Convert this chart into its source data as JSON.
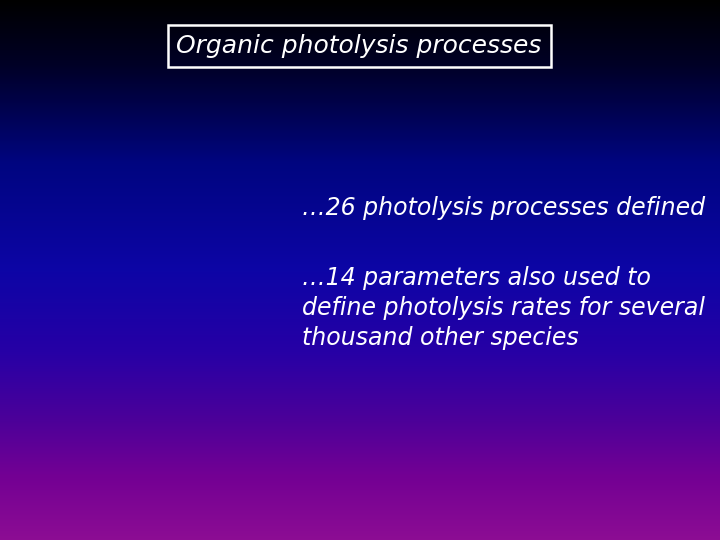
{
  "title": "Organic photolysis processes",
  "title_fontsize": 18,
  "title_text_color": "#ffffff",
  "title_box_edge_color": "#ffffff",
  "bullet1": "…26 photolysis processes defined",
  "bullet2": "…14 parameters also used to\ndefine photolysis rates for several\nthousand other species",
  "bullet_text_color": "#ffffff",
  "bullet_fontsize": 17,
  "figsize": [
    7.2,
    5.4
  ],
  "dpi": 100,
  "color_stops": [
    [
      0.0,
      [
        0.0,
        0.0,
        0.0
      ]
    ],
    [
      0.12,
      [
        0.0,
        0.0,
        0.15
      ]
    ],
    [
      0.3,
      [
        0.0,
        0.02,
        0.5
      ]
    ],
    [
      0.5,
      [
        0.05,
        0.02,
        0.65
      ]
    ],
    [
      0.65,
      [
        0.15,
        0.0,
        0.65
      ]
    ],
    [
      0.78,
      [
        0.3,
        0.0,
        0.6
      ]
    ],
    [
      0.88,
      [
        0.45,
        0.0,
        0.58
      ]
    ],
    [
      1.0,
      [
        0.55,
        0.05,
        0.58
      ]
    ]
  ]
}
